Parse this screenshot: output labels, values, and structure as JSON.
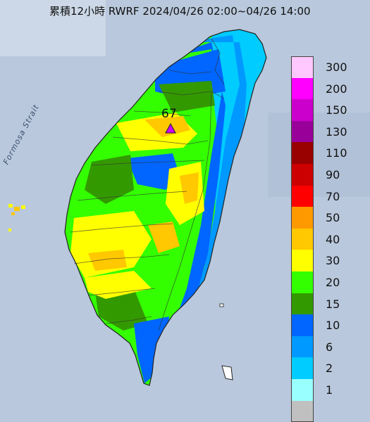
{
  "title": "累積12小時 RWRF 2024/04/26 02:00~04/26 14:00",
  "strait_label": "Formosa Strait",
  "peak": {
    "value": "67"
  },
  "legend": {
    "levels": [
      {
        "label": "300",
        "color": "#ffc8ff"
      },
      {
        "label": "200",
        "color": "#ff00ff"
      },
      {
        "label": "150",
        "color": "#cc00cc"
      },
      {
        "label": "130",
        "color": "#990099"
      },
      {
        "label": "110",
        "color": "#990000"
      },
      {
        "label": "90",
        "color": "#cc0000"
      },
      {
        "label": "70",
        "color": "#ff0000"
      },
      {
        "label": "50",
        "color": "#ff9900"
      },
      {
        "label": "40",
        "color": "#ffc800"
      },
      {
        "label": "30",
        "color": "#ffff00"
      },
      {
        "label": "20",
        "color": "#33ff00"
      },
      {
        "label": "15",
        "color": "#339900"
      },
      {
        "label": "10",
        "color": "#0066ff"
      },
      {
        "label": "6",
        "color": "#0099ff"
      },
      {
        "label": "2",
        "color": "#00ccff"
      },
      {
        "label": "1",
        "color": "#99ffff"
      },
      {
        "label": "",
        "color": "#c0c0c0"
      }
    ]
  },
  "colors": {
    "sea": "#b9c8dc",
    "land_base": "#33ff00"
  }
}
